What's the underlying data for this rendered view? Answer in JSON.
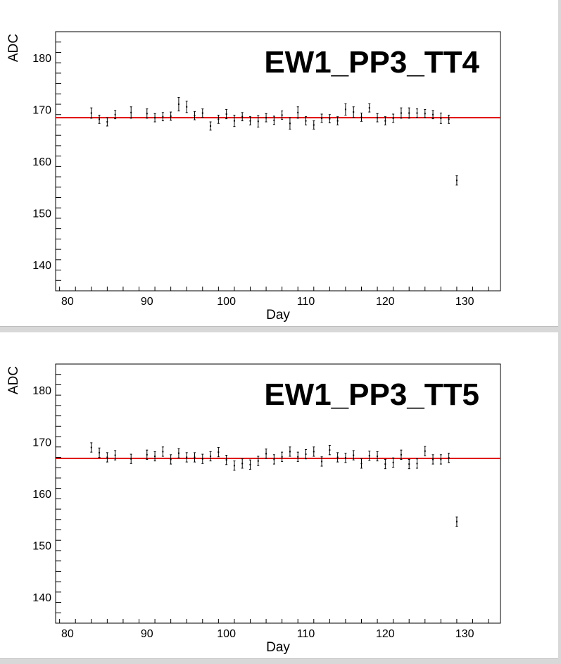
{
  "chart_data": [
    {
      "type": "scatter",
      "title": "EW1_PP3_TT4",
      "xlabel": "Day",
      "ylabel": "ADC",
      "xlim": [
        78.5,
        134.5
      ],
      "ylim": [
        135,
        185
      ],
      "xticks": [
        80,
        90,
        100,
        110,
        120,
        130
      ],
      "yticks": [
        140,
        150,
        160,
        170,
        180
      ],
      "fit_line": {
        "y": 168.4,
        "color": "#e00000"
      },
      "series": [
        {
          "x": [
            83,
            84,
            85,
            86,
            88,
            90,
            91,
            92,
            93,
            94,
            95,
            96,
            97,
            98,
            99,
            100,
            101,
            102,
            103,
            104,
            105,
            106,
            107,
            108,
            109,
            110,
            111,
            112,
            113,
            114,
            115,
            116,
            117,
            118,
            119,
            120,
            121,
            122,
            123,
            124,
            125,
            126,
            127,
            128,
            129
          ],
          "values": [
            169.3,
            168.1,
            167.6,
            169.0,
            169.4,
            169.2,
            168.4,
            168.6,
            168.7,
            171.0,
            170.5,
            168.8,
            169.3,
            166.8,
            168.1,
            169.1,
            167.8,
            168.6,
            167.8,
            167.7,
            168.4,
            167.9,
            168.9,
            167.3,
            169.4,
            167.8,
            167.0,
            168.3,
            168.2,
            167.8,
            170.0,
            169.5,
            168.5,
            170.3,
            168.4,
            167.8,
            168.3,
            169.3,
            169.3,
            169.3,
            169.2,
            169.0,
            168.3,
            168.1,
            156.3
          ],
          "errors": [
            1.0,
            0.8,
            0.8,
            0.8,
            1.1,
            0.9,
            0.8,
            0.8,
            0.8,
            1.3,
            1.1,
            0.8,
            0.8,
            0.8,
            0.8,
            0.9,
            1.1,
            0.8,
            0.8,
            1.1,
            0.8,
            0.8,
            0.8,
            1.1,
            1.1,
            0.8,
            0.8,
            0.8,
            0.8,
            0.8,
            1.1,
            1.0,
            0.8,
            0.8,
            0.8,
            0.8,
            0.8,
            1.0,
            1.0,
            0.8,
            0.8,
            0.8,
            1.0,
            0.8,
            0.9
          ]
        }
      ]
    },
    {
      "type": "scatter",
      "title": "EW1_PP3_TT5",
      "xlabel": "Day",
      "ylabel": "ADC",
      "xlim": [
        78.5,
        134.5
      ],
      "ylim": [
        135,
        185
      ],
      "xticks": [
        80,
        90,
        100,
        110,
        120,
        130
      ],
      "yticks": [
        140,
        150,
        160,
        170,
        180
      ],
      "fit_line": {
        "y": 166.8,
        "color": "#e00000"
      },
      "series": [
        {
          "x": [
            83,
            84,
            85,
            86,
            88,
            90,
            91,
            92,
            93,
            94,
            95,
            96,
            97,
            98,
            99,
            100,
            101,
            102,
            103,
            104,
            105,
            106,
            107,
            108,
            109,
            110,
            111,
            112,
            113,
            114,
            115,
            116,
            117,
            118,
            119,
            120,
            121,
            122,
            123,
            124,
            125,
            126,
            127,
            128,
            129
          ],
          "values": [
            168.9,
            167.9,
            167.0,
            167.4,
            166.7,
            167.5,
            167.2,
            168.1,
            166.6,
            167.8,
            167.0,
            167.0,
            166.7,
            167.2,
            168.0,
            166.5,
            165.4,
            165.8,
            165.6,
            166.3,
            167.7,
            166.6,
            167.1,
            168.1,
            167.1,
            167.6,
            168.1,
            166.2,
            168.4,
            167.0,
            166.9,
            167.4,
            165.8,
            167.3,
            167.2,
            165.7,
            166.0,
            167.5,
            165.7,
            165.8,
            168.2,
            166.6,
            166.6,
            166.9,
            154.6
          ]
        }
      ]
    }
  ]
}
